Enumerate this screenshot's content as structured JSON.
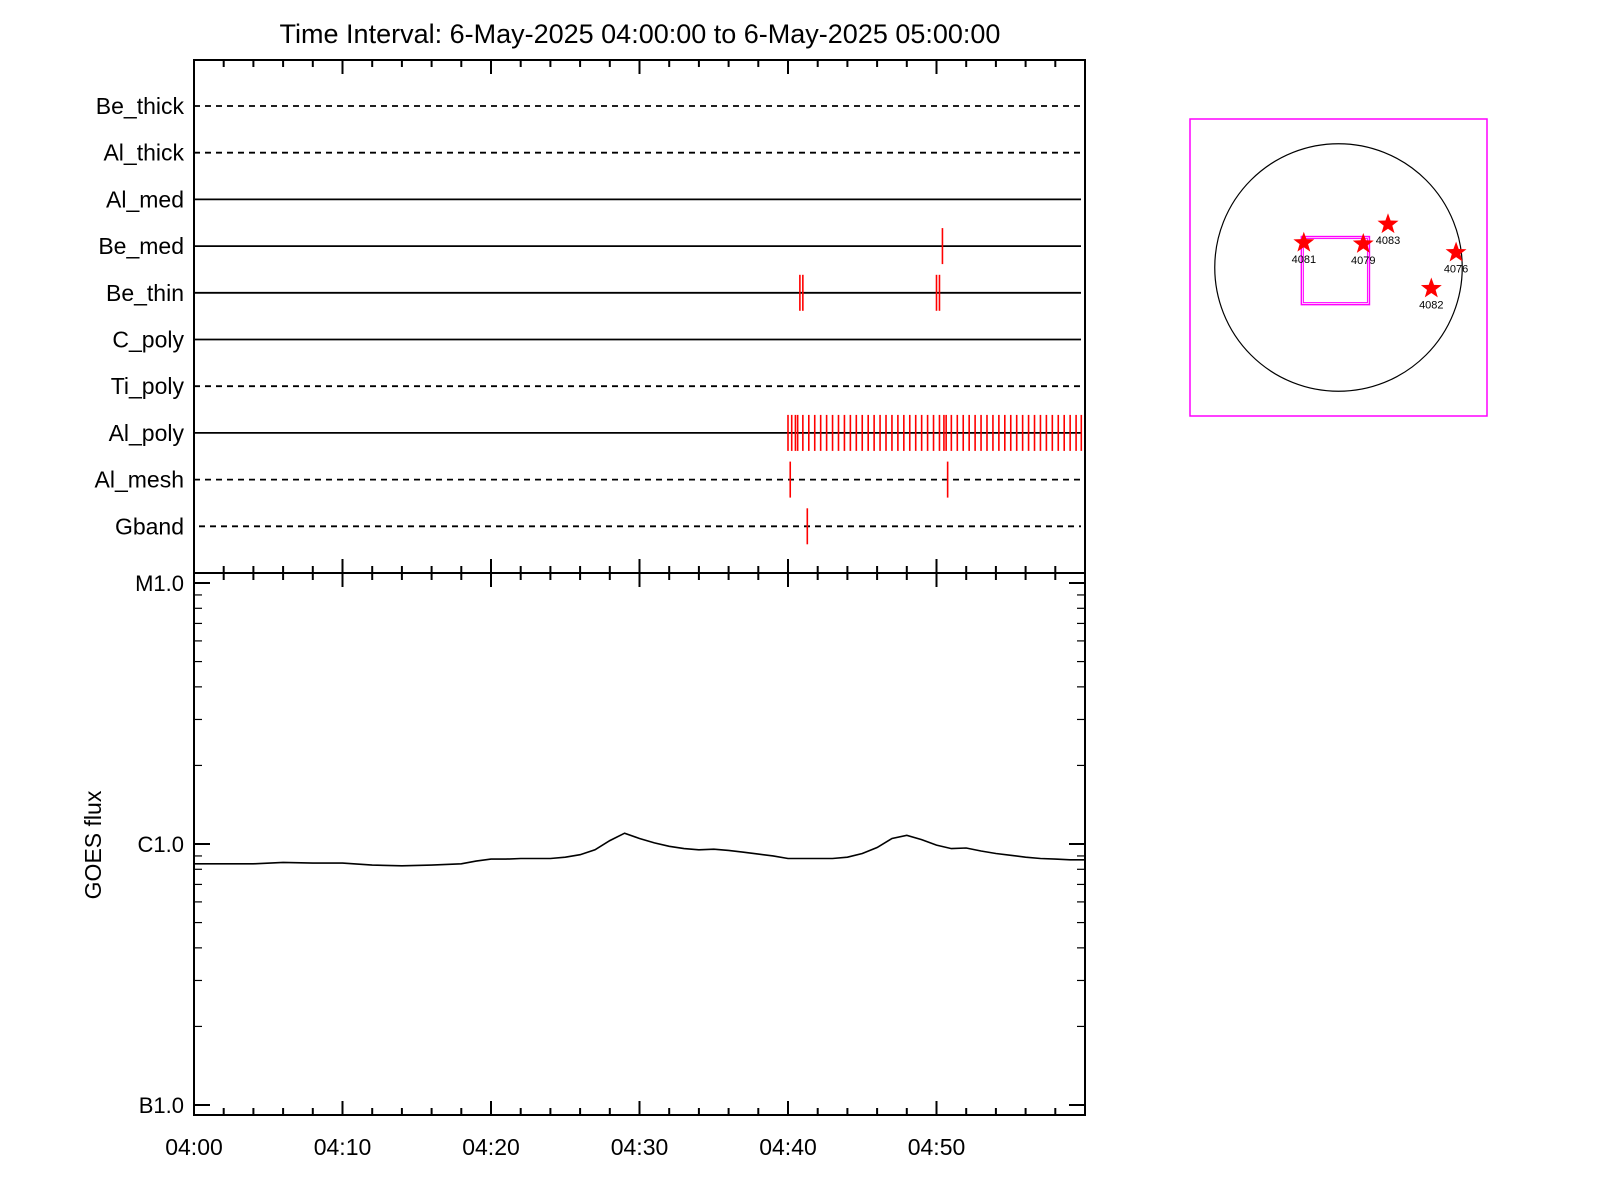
{
  "title": "Time Interval:  6-May-2025 04:00:00 to  6-May-2025 05:00:00",
  "colors": {
    "event": "#ff0000",
    "frame": "#ff00ff",
    "axis": "#000000"
  },
  "chart_data": [
    {
      "type": "timeline",
      "x_range_minutes": [
        0,
        60
      ],
      "rows": [
        {
          "name": "Be_thick",
          "style": "dashed",
          "events": []
        },
        {
          "name": "Al_thick",
          "style": "dashed",
          "events": []
        },
        {
          "name": "Al_med",
          "style": "solid",
          "events": []
        },
        {
          "name": "Be_med",
          "style": "solid",
          "events": [
            50.4
          ]
        },
        {
          "name": "Be_thin",
          "style": "solid",
          "events": [
            40.8,
            41.0,
            50.0,
            50.2
          ]
        },
        {
          "name": "C_poly",
          "style": "solid",
          "events": []
        },
        {
          "name": "Ti_poly",
          "style": "dashed",
          "events": []
        },
        {
          "name": "Al_poly",
          "style": "solid",
          "events": [
            40.0,
            40.25,
            40.5,
            40.65,
            41.0,
            41.4,
            41.8,
            42.2,
            42.6,
            43.0,
            43.4,
            43.8,
            44.2,
            44.6,
            45.0,
            45.4,
            45.8,
            46.2,
            46.6,
            47.0,
            47.4,
            47.8,
            48.2,
            48.6,
            49.0,
            49.4,
            49.8,
            50.2,
            50.5,
            50.65,
            51.0,
            51.4,
            51.8,
            52.2,
            52.6,
            53.0,
            53.4,
            53.8,
            54.2,
            54.6,
            55.0,
            55.4,
            55.8,
            56.2,
            56.6,
            57.0,
            57.4,
            57.8,
            58.2,
            58.6,
            59.0,
            59.4,
            59.75
          ]
        },
        {
          "name": "Al_mesh",
          "style": "dashed",
          "events": [
            40.15,
            50.75
          ]
        },
        {
          "name": "Gband",
          "style": "dashed",
          "events": [
            41.3
          ]
        }
      ]
    },
    {
      "type": "line",
      "ylabel": "GOES flux",
      "yscale": "log",
      "ylim": [
        1e-07,
        1e-05
      ],
      "yticks": [
        {
          "value": 1e-05,
          "label": "M1.0"
        },
        {
          "value": 1e-06,
          "label": "C1.0"
        },
        {
          "value": 1e-07,
          "label": "B1.0"
        }
      ],
      "xticks": [
        "04:00",
        "04:10",
        "04:20",
        "04:30",
        "04:40",
        "04:50"
      ],
      "x_minutes": [
        0,
        2,
        4,
        6,
        8,
        10,
        12,
        14,
        16,
        18,
        19,
        20,
        21,
        22,
        24,
        25,
        26,
        27,
        28,
        29,
        30,
        31,
        32,
        33,
        34,
        35,
        36,
        37,
        38,
        39,
        40,
        41,
        42,
        43,
        44,
        45,
        46,
        47,
        48,
        49,
        50,
        51,
        52,
        53,
        54,
        55,
        56,
        57,
        58,
        59,
        60
      ],
      "y": [
        8.4e-07,
        8.4e-07,
        8.4e-07,
        8.5e-07,
        8.45e-07,
        8.45e-07,
        8.3e-07,
        8.25e-07,
        8.3e-07,
        8.4e-07,
        8.6e-07,
        8.75e-07,
        8.75e-07,
        8.8e-07,
        8.8e-07,
        8.9e-07,
        9.1e-07,
        9.5e-07,
        1.03e-06,
        1.1e-06,
        1.05e-06,
        1.01e-06,
        9.8e-07,
        9.6e-07,
        9.5e-07,
        9.55e-07,
        9.45e-07,
        9.3e-07,
        9.15e-07,
        9e-07,
        8.8e-07,
        8.8e-07,
        8.8e-07,
        8.8e-07,
        8.9e-07,
        9.2e-07,
        9.7e-07,
        1.05e-06,
        1.08e-06,
        1.04e-06,
        9.9e-07,
        9.6e-07,
        9.65e-07,
        9.4e-07,
        9.2e-07,
        9.05e-07,
        8.9e-07,
        8.8e-07,
        8.75e-07,
        8.7e-07,
        8.7e-07
      ]
    },
    {
      "type": "scatter",
      "description_of_axes": "solar disk, arcsec",
      "x_range": [
        -1200,
        1200
      ],
      "y_range": [
        -1200,
        1200
      ],
      "disk_radius": 1000,
      "fov_box": {
        "x": [
          -300,
          250
        ],
        "y": [
          -300,
          250
        ]
      },
      "points": [
        {
          "label": "4081",
          "x": -280,
          "y": 200
        },
        {
          "label": "4079",
          "x": 200,
          "y": 190
        },
        {
          "label": "4083",
          "x": 400,
          "y": 350
        },
        {
          "label": "4076",
          "x": 950,
          "y": 120
        },
        {
          "label": "4082",
          "x": 750,
          "y": -170
        }
      ]
    }
  ]
}
